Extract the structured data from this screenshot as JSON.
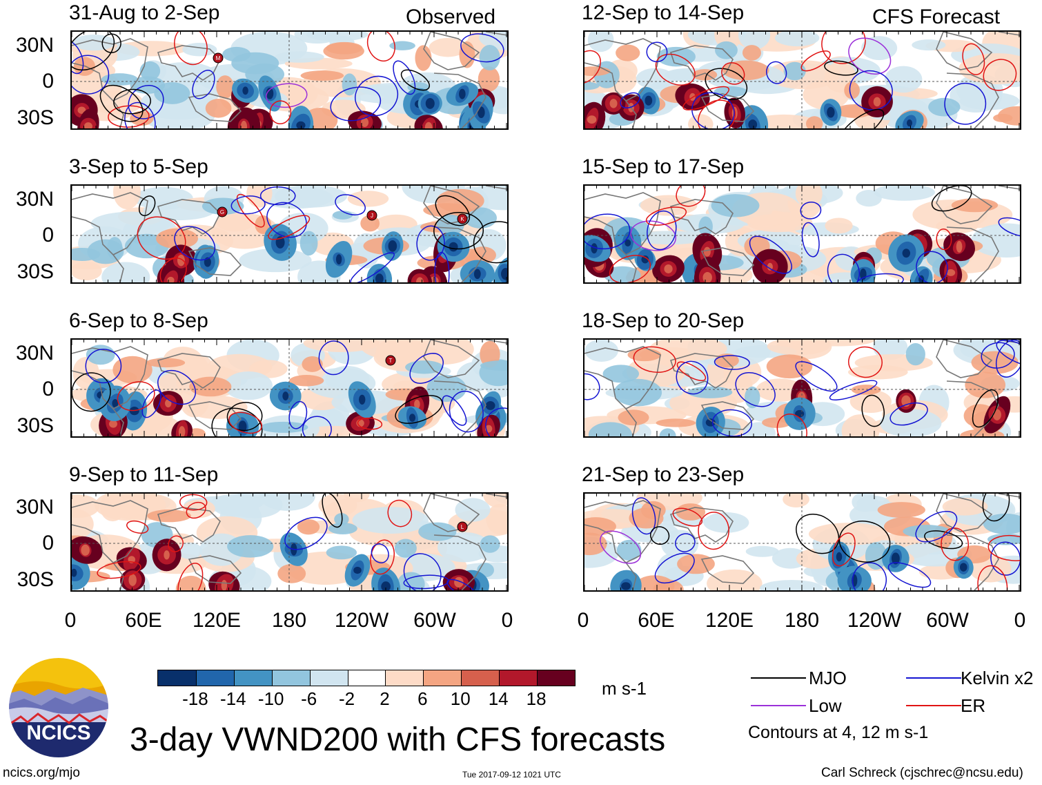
{
  "header": {
    "observed_label": "Observed",
    "forecast_label": "CFS Forecast"
  },
  "panels": {
    "observed": [
      {
        "title": "31-Aug to 2-Sep",
        "storms": [
          "M"
        ]
      },
      {
        "title": "3-Sep to 5-Sep",
        "storms": [
          "G",
          "K",
          "J"
        ]
      },
      {
        "title": "6-Sep to 8-Sep",
        "storms": [
          "T"
        ]
      },
      {
        "title": "9-Sep to 11-Sep",
        "storms": [
          "L"
        ]
      }
    ],
    "forecast": [
      {
        "title": "12-Sep to 14-Sep"
      },
      {
        "title": "15-Sep to 17-Sep"
      },
      {
        "title": "18-Sep to 20-Sep"
      },
      {
        "title": "21-Sep to 23-Sep"
      }
    ]
  },
  "axes": {
    "lat_labels": [
      "30N",
      "0",
      "30S"
    ],
    "lon_labels": [
      "0",
      "60E",
      "120E",
      "180",
      "120W",
      "60W",
      "0"
    ]
  },
  "colorbar": {
    "colors": [
      "#08306b",
      "#2166ac",
      "#4393c3",
      "#92c5de",
      "#d1e5f0",
      "#ffffff",
      "#fddbc7",
      "#f4a582",
      "#d6604d",
      "#b2182b",
      "#67001f"
    ],
    "tick_labels": [
      "-18",
      "-14",
      "-10",
      "-6",
      "-2",
      "2",
      "6",
      "10",
      "14",
      "18"
    ],
    "units": "m s-1"
  },
  "legend": {
    "items": [
      {
        "label": "MJO",
        "color": "#000000"
      },
      {
        "label": "Kelvin x2",
        "color": "#1414d2"
      },
      {
        "label": "Low",
        "color": "#9b30d9"
      },
      {
        "label": "ER",
        "color": "#e01414"
      }
    ],
    "contour_note": "Contours at 4, 12 m s-1"
  },
  "footer": {
    "title": "3-day VWND200 with CFS forecasts",
    "website": "ncics.org/mjo",
    "timestamp": "Tue 2017-09-12 1021 UTC",
    "credit": "Carl Schreck (cjschrec@ncsu.edu)",
    "logo_text": "NCICS"
  }
}
